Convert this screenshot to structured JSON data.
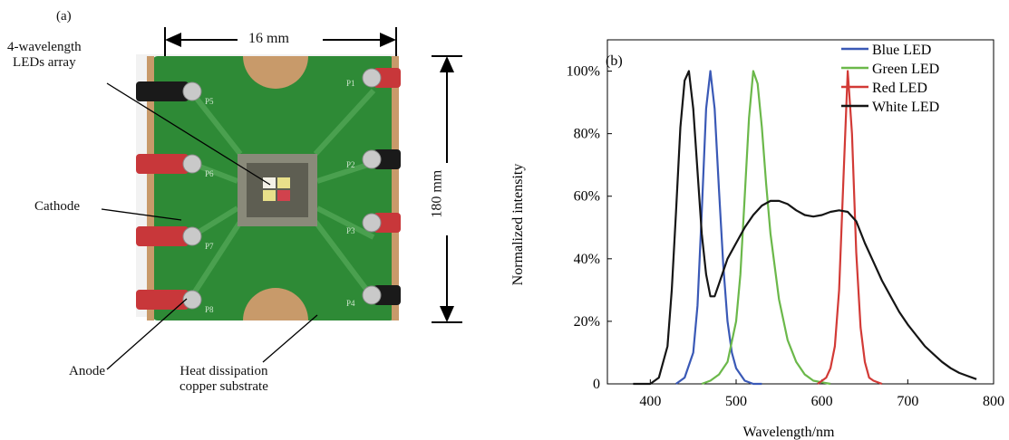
{
  "panel_a": {
    "label": "(a)",
    "width_label": "16 mm",
    "height_label": "180 mm",
    "callouts": {
      "array": "4-wavelength\nLEDs array",
      "cathode": "Cathode",
      "anode": "Anode",
      "substrate": "Heat dissipation\ncopper substrate"
    },
    "pads": [
      "P5",
      "P6",
      "P7",
      "P8",
      "P1",
      "P2",
      "P3",
      "P4"
    ],
    "colors": {
      "board": "#2e8a36",
      "board_dark": "#1f6a27",
      "copper": "#c89a6a",
      "red_wire": "#c8373a",
      "black_wire": "#1a1a1a",
      "solder": "#c9c9c9",
      "led_yellow": "#e8e08a",
      "led_red": "#d1424d",
      "led_white": "#f3f1e6"
    }
  },
  "chart_data": {
    "type": "line",
    "panel_label": "(b)",
    "title": "",
    "xlabel": "Wavelength/nm",
    "ylabel": "Normalized intensity",
    "xlim": [
      350,
      800
    ],
    "ylim": [
      0,
      1.1
    ],
    "xticks": [
      400,
      500,
      600,
      700,
      800
    ],
    "xtick_labels": [
      "400",
      "500",
      "600",
      "700",
      "800"
    ],
    "yticks": [
      0,
      0.2,
      0.4,
      0.6,
      0.8,
      1.0
    ],
    "ytick_labels": [
      "0",
      "20%",
      "40%",
      "60%",
      "80%",
      "100%"
    ],
    "grid": false,
    "legend": "top-right",
    "series": [
      {
        "name": "Blue LED",
        "color": "#3a59b6",
        "x": [
          430,
          440,
          450,
          455,
          460,
          465,
          470,
          475,
          480,
          485,
          490,
          495,
          500,
          510,
          520,
          530
        ],
        "y": [
          0.0,
          0.02,
          0.1,
          0.25,
          0.55,
          0.88,
          1.0,
          0.88,
          0.62,
          0.38,
          0.2,
          0.1,
          0.05,
          0.01,
          0.0,
          0.0
        ]
      },
      {
        "name": "Green LED",
        "color": "#6bb84a",
        "x": [
          460,
          470,
          480,
          490,
          500,
          505,
          510,
          515,
          520,
          525,
          530,
          535,
          540,
          550,
          560,
          570,
          580,
          590,
          600,
          610
        ],
        "y": [
          0.0,
          0.01,
          0.03,
          0.07,
          0.2,
          0.35,
          0.6,
          0.85,
          1.0,
          0.96,
          0.82,
          0.64,
          0.48,
          0.27,
          0.14,
          0.07,
          0.03,
          0.01,
          0.005,
          0.0
        ]
      },
      {
        "name": "Red LED",
        "color": "#d23a36",
        "x": [
          595,
          605,
          610,
          615,
          620,
          625,
          630,
          635,
          640,
          645,
          650,
          655,
          660,
          670
        ],
        "y": [
          0.0,
          0.02,
          0.05,
          0.12,
          0.3,
          0.65,
          1.0,
          0.8,
          0.42,
          0.18,
          0.07,
          0.02,
          0.01,
          0.0
        ]
      },
      {
        "name": "White LED",
        "color": "#151515",
        "x": [
          380,
          400,
          410,
          420,
          425,
          430,
          435,
          440,
          445,
          450,
          455,
          460,
          465,
          470,
          475,
          480,
          485,
          490,
          500,
          510,
          520,
          530,
          540,
          550,
          560,
          570,
          580,
          590,
          600,
          610,
          620,
          630,
          640,
          650,
          660,
          670,
          680,
          690,
          700,
          710,
          720,
          730,
          740,
          750,
          760,
          770,
          780
        ],
        "y": [
          0.0,
          0.0,
          0.02,
          0.12,
          0.3,
          0.55,
          0.82,
          0.97,
          1.0,
          0.88,
          0.68,
          0.48,
          0.35,
          0.28,
          0.28,
          0.32,
          0.36,
          0.4,
          0.45,
          0.5,
          0.54,
          0.57,
          0.585,
          0.585,
          0.575,
          0.555,
          0.54,
          0.535,
          0.54,
          0.55,
          0.555,
          0.55,
          0.52,
          0.45,
          0.39,
          0.33,
          0.28,
          0.23,
          0.19,
          0.155,
          0.12,
          0.095,
          0.07,
          0.05,
          0.035,
          0.025,
          0.015
        ]
      }
    ]
  }
}
